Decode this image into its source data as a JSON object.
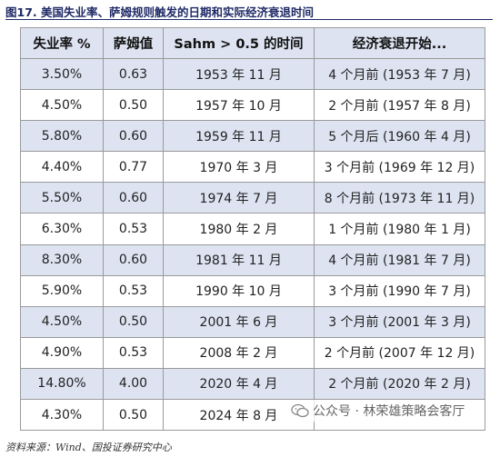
{
  "title": "图17. 美国失业率、萨姆规则触发的日期和实际经济衰退时间",
  "table": {
    "headers": [
      "失业率 %",
      "萨姆值",
      "Sahm > 0.5 的时间",
      "经济衰退开始..."
    ],
    "rows": [
      [
        "3.50%",
        "0.63",
        "1953 年 11 月",
        "4 个月前 (1953 年 7 月)"
      ],
      [
        "4.50%",
        "0.50",
        "1957 年 10 月",
        "2 个月前 (1957 年 8 月)"
      ],
      [
        "5.80%",
        "0.60",
        "1959 年 11 月",
        "5 个月后 (1960 年 4 月)"
      ],
      [
        "4.40%",
        "0.77",
        "1970 年 3 月",
        "3 个月前 (1969 年 12 月)"
      ],
      [
        "5.50%",
        "0.60",
        "1974 年 7 月",
        "8 个月前 (1973 年 11 月)"
      ],
      [
        "6.30%",
        "0.53",
        "1980 年 2 月",
        "1 个月前 (1980 年 1 月)"
      ],
      [
        "8.30%",
        "0.60",
        "1981 年 11 月",
        "4 个月前 (1981 年 7 月)"
      ],
      [
        "5.90%",
        "0.53",
        "1990 年 10 月",
        "3 个月前 (1990 年 7 月)"
      ],
      [
        "4.50%",
        "0.50",
        "2001 年 6 月",
        "3 个月前 (2001 年 3 月)"
      ],
      [
        "4.90%",
        "0.53",
        "2008 年 2 月",
        "2 个月前 (2007 年 12 月)"
      ],
      [
        "14.80%",
        "4.00",
        "2020 年 4 月",
        "2 个月前 (2020 年 2 月)"
      ],
      [
        "4.30%",
        "0.50",
        "2024 年 8 月",
        "-"
      ]
    ]
  },
  "footer": "资料来源：Wind、国投证券研究中心",
  "watermark": "公众号 · 林荣雄策略会客厅",
  "colors": {
    "header_bg": "#dde3f1",
    "stripe_bg": "#dde3f1",
    "title": "#1f2a66"
  }
}
